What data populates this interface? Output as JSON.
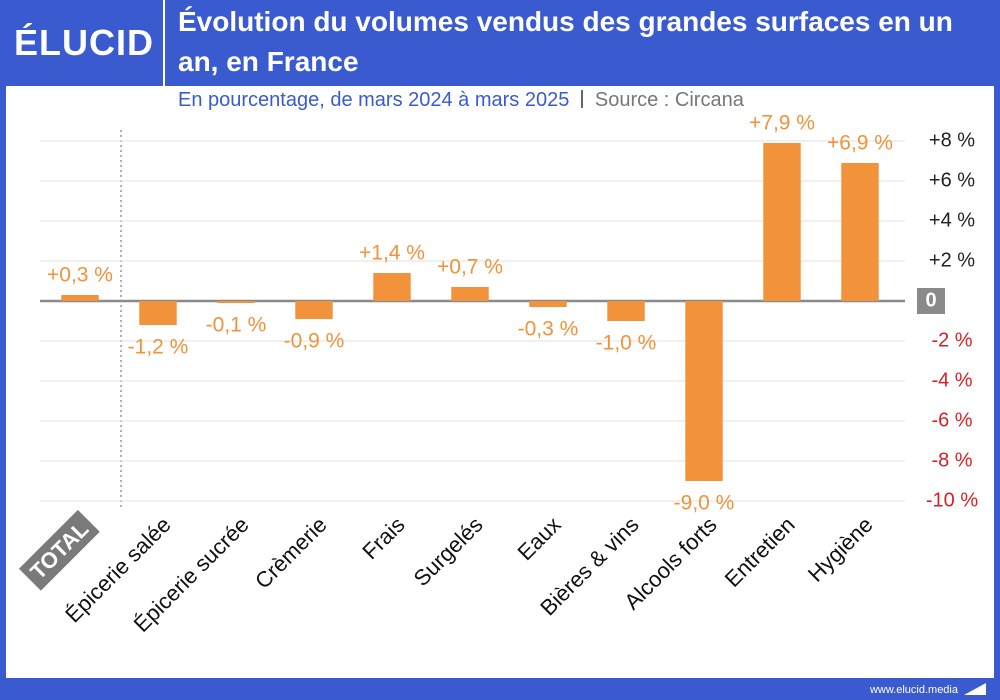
{
  "header": {
    "logo": "ÉLUCID"
  },
  "footer": {
    "site": "www.elucid.media"
  },
  "chart_data": {
    "type": "bar",
    "title": "Évolution du volumes vendus des grandes surfaces en un an, en France",
    "subtitle": "En pourcentage, de mars 2024 à mars 2025",
    "source": "Source : Circana",
    "categories": [
      "TOTAL",
      "Épicerie salée",
      "Épicerie sucrée",
      "Crèmerie",
      "Frais",
      "Surgelés",
      "Eaux",
      "Bières & vins",
      "Alcools forts",
      "Entretien",
      "Hygiène"
    ],
    "values": [
      0.3,
      -1.2,
      -0.1,
      -0.9,
      1.4,
      0.7,
      -0.3,
      -1.0,
      -9.0,
      7.9,
      6.9
    ],
    "value_labels": [
      "+0,3 %",
      "-1,2 %",
      "-0,1 %",
      "-0,9 %",
      "+1,4 %",
      "+0,7 %",
      "-0,3 %",
      "-1,0 %",
      "-9,0 %",
      "+7,9 %",
      "+6,9 %"
    ],
    "color": "#f2923a",
    "ylim": [
      -10,
      8.5
    ],
    "yticks": [
      {
        "value": 8,
        "label": "+8 %"
      },
      {
        "value": 6,
        "label": "+6 %"
      },
      {
        "value": 4,
        "label": "+4 %"
      },
      {
        "value": 2,
        "label": "+2 %"
      },
      0,
      {
        "value": -2,
        "label": "-2 %"
      },
      {
        "value": -4,
        "label": "-4 %"
      },
      {
        "value": -6,
        "label": "-6 %"
      },
      {
        "value": -8,
        "label": "-8 %"
      },
      {
        "value": -10,
        "label": "-10 %"
      }
    ],
    "grid": true
  }
}
